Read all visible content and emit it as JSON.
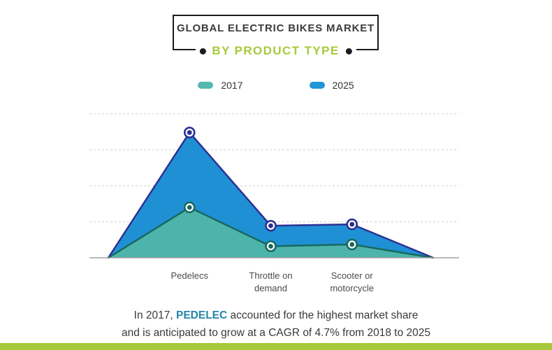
{
  "header": {
    "title": "GLOBAL ELECTRIC BIKES MARKET",
    "subtitle": "BY PRODUCT TYPE"
  },
  "legend": [
    {
      "label": "2017",
      "color": "#55b8af"
    },
    {
      "label": "2025",
      "color": "#2196d6"
    }
  ],
  "chart_data": {
    "type": "area",
    "categories": [
      "Pedelecs",
      "Throttle on demand",
      "Scooter or motorcycle"
    ],
    "series": [
      {
        "name": "2025",
        "values": [
          3.48,
          0.89,
          0.93
        ],
        "fill": "#2090d5",
        "line": "#2b3192",
        "marker": "#2b2e8c"
      },
      {
        "name": "2017",
        "values": [
          1.4,
          0.32,
          0.37
        ],
        "fill": "#4db4ab",
        "line": "#17695e",
        "marker": "#17695e"
      }
    ],
    "title": "Global Electric Bikes Market by Product Type",
    "xlabel": "",
    "ylabel": "",
    "ylim": [
      0,
      4.25
    ],
    "gridlines": [
      1,
      2,
      3,
      4
    ],
    "grid": "dashed-horizontal, no y-axis tick labels shown",
    "legend_position": "top",
    "note": "values estimated in gridline units; both series rise from 0 at left chart edge and return to 0 at right chart edge"
  },
  "footnote": {
    "line1_prefix": "In 2017, ",
    "line1_highlight": "PEDELEC",
    "line1_suffix": " accounted for the highest market share",
    "line2": "and is anticipated to grow at a CAGR of 4.7% from 2018 to 2025"
  },
  "theme": {
    "accent_green": "#a6ca3b",
    "highlight_teal": "#2585a8",
    "grid_color": "#d0d0d0",
    "axis_color": "#a3a3a3"
  }
}
